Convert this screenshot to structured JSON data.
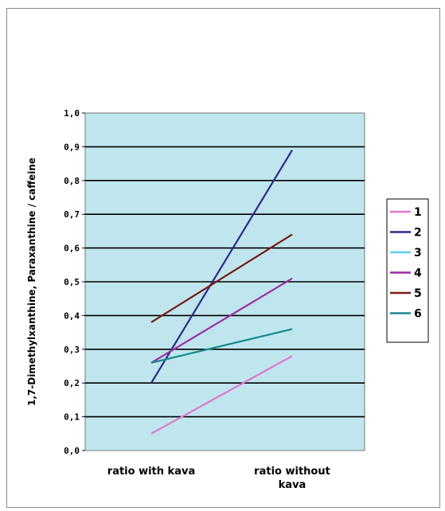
{
  "chart_data": {
    "type": "line",
    "title": "",
    "xlabel": "",
    "ylabel": "1,7-Dimethylxanthine, Paraxanthine / caffeine",
    "categories": [
      "ratio with kava",
      "ratio without kava"
    ],
    "category_lines": [
      [
        "ratio with kava"
      ],
      [
        "ratio without",
        "kava"
      ]
    ],
    "ylim": [
      0,
      1.0
    ],
    "yticks": [
      "0,0",
      "0,1",
      "0,2",
      "0,3",
      "0,4",
      "0,5",
      "0,6",
      "0,7",
      "0,8",
      "0,9",
      "1,0"
    ],
    "grid": true,
    "legend_position": "right",
    "plot_background": "#bfe6ee",
    "series": [
      {
        "name": "1",
        "values": [
          0.05,
          0.28
        ],
        "color": "#e075d0"
      },
      {
        "name": "2",
        "values": [
          0.2,
          0.89
        ],
        "color": "#2a2a8a"
      },
      {
        "name": "3",
        "values": [
          0.26,
          0.36
        ],
        "color": "#5ad0f0"
      },
      {
        "name": "4",
        "values": [
          0.26,
          0.51
        ],
        "color": "#a02aa8"
      },
      {
        "name": "5",
        "values": [
          0.38,
          0.64
        ],
        "color": "#7a1a12"
      },
      {
        "name": "6",
        "values": [
          0.26,
          0.36
        ],
        "color": "#1a8a8a"
      }
    ]
  }
}
